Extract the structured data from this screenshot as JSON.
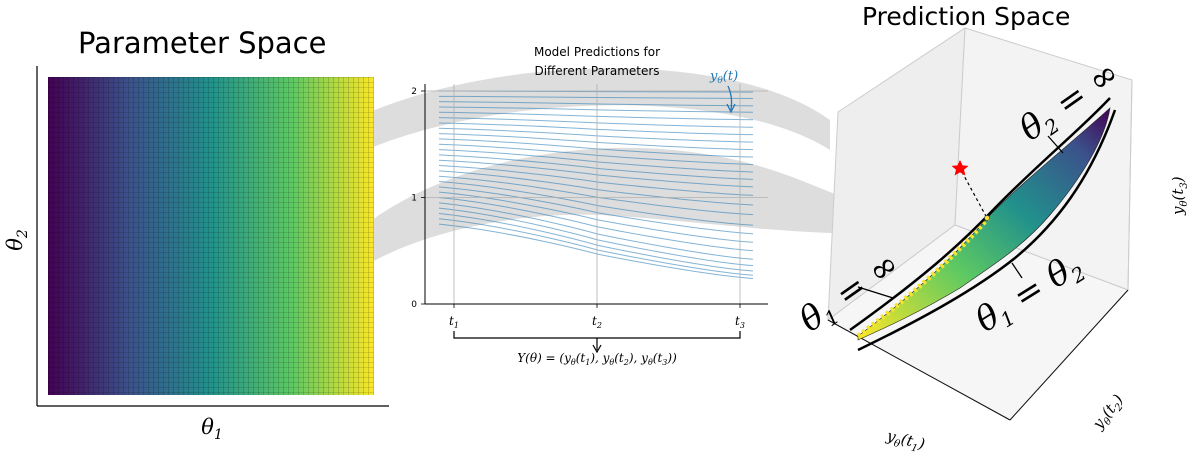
{
  "parameter_space": {
    "title": "Parameter Space",
    "xlabel": "θ1",
    "ylabel": "θ2",
    "grid_cols": 65,
    "grid_rows": 62,
    "colormap": [
      "#440154",
      "#3b528b",
      "#21918c",
      "#5ec962",
      "#fde725"
    ]
  },
  "model_predictions": {
    "title_line1": "Model Predictions for",
    "title_line2": "Different Parameters",
    "curve_label": "yθ(t)",
    "curve_color": "#1f77b4",
    "mapping_label": "Y(θ) = (yθ(t1), yθ(t2), yθ(t3))"
  },
  "chart_data": {
    "type": "line",
    "x": [
      "t1",
      "t2",
      "t3"
    ],
    "yticks": [
      0,
      1,
      2
    ],
    "ylim": [
      0,
      2.1
    ],
    "grid": true,
    "series_start_values": [
      0.75,
      0.8,
      0.85,
      0.9,
      0.95,
      1.0,
      1.05,
      1.1,
      1.15,
      1.2,
      1.25,
      1.3,
      1.35,
      1.4,
      1.45,
      1.5,
      1.55,
      1.6,
      1.65,
      1.7,
      1.75,
      1.8,
      1.85,
      1.9,
      1.95,
      2.0
    ],
    "series_end_values": [
      0.24,
      0.27,
      0.31,
      0.36,
      0.42,
      0.5,
      0.58,
      0.66,
      0.74,
      0.84,
      0.93,
      1.02,
      1.1,
      1.17,
      1.24,
      1.31,
      1.38,
      1.45,
      1.52,
      1.59,
      1.66,
      1.73,
      1.8,
      1.86,
      1.93,
      1.99
    ]
  },
  "prediction_space": {
    "title": "Prediction Space",
    "axis_x": "yθ(t1)",
    "axis_y": "yθ(t2)",
    "axis_z": "yθ(t3)",
    "label_theta2_inf": "θ2 = ∞",
    "label_theta1_inf": "θ1 = ∞",
    "label_theta1_eq_theta2": "θ1 = θ2",
    "star_color": "#ff0000"
  }
}
